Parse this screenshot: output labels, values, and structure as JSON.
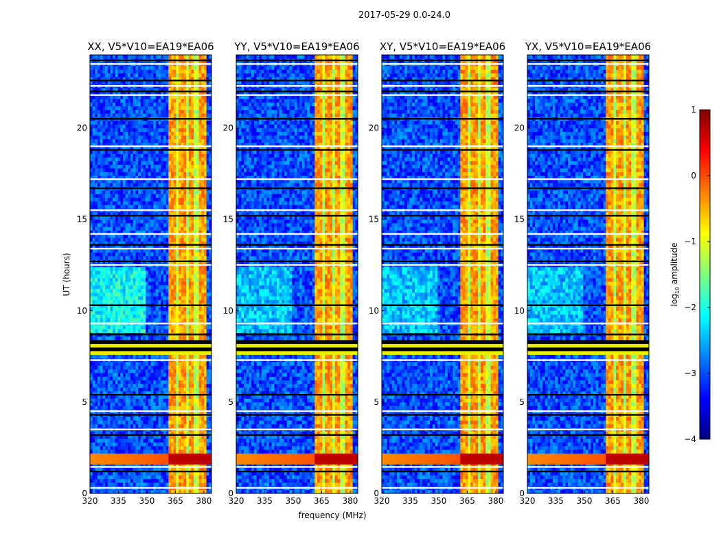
{
  "chart_data": {
    "type": "heatmap",
    "suptitle": "2017-05-29 0.0-24.0",
    "xlabel": "frequency (MHz)",
    "ylabel": "UT (hours)",
    "xlim": [
      320,
      384
    ],
    "ylim": [
      0,
      24
    ],
    "xticks": [
      320,
      335,
      350,
      365,
      380
    ],
    "yticks": [
      0,
      5,
      10,
      15,
      20
    ],
    "panels": [
      {
        "title": "XX, V5*V10=EA19*EA06"
      },
      {
        "title": "YY, V5*V10=EA19*EA06"
      },
      {
        "title": "XY, V5*V10=EA19*EA06"
      },
      {
        "title": "YX, V5*V10=EA19*EA06"
      }
    ],
    "colorbar": {
      "label": "log10 amplitude",
      "label_main": "log",
      "label_sub": "10",
      "label_rest": " amplitude",
      "colormap": "jet",
      "range": [
        -4,
        1
      ],
      "ticks": [
        1,
        0,
        -1,
        -2,
        -3,
        -4
      ],
      "tick_labels": [
        "1",
        "0",
        "−1",
        "−2",
        "−3",
        "−4"
      ]
    },
    "features": {
      "background_level": -3.0,
      "rfi_band_mhz": [
        361,
        381
      ],
      "rfi_level": -0.4,
      "strong_event_hours": [
        1.6,
        2.3
      ],
      "strong_event_level": 0.7,
      "flagged_block_hours": [
        7.6,
        8.5
      ],
      "flagged_rows_hours": [
        0.3,
        1.2,
        1.45,
        3.2,
        3.5,
        4.3,
        4.5,
        5.4,
        7.3,
        8.7,
        9.3,
        10.3,
        12.5,
        12.7,
        13.4,
        13.6,
        14.2,
        15.2,
        15.5,
        16.7,
        17.2,
        18.8,
        19.0,
        20.5,
        21.8,
        22.0,
        22.3,
        22.6,
        23.5,
        23.7
      ]
    }
  }
}
